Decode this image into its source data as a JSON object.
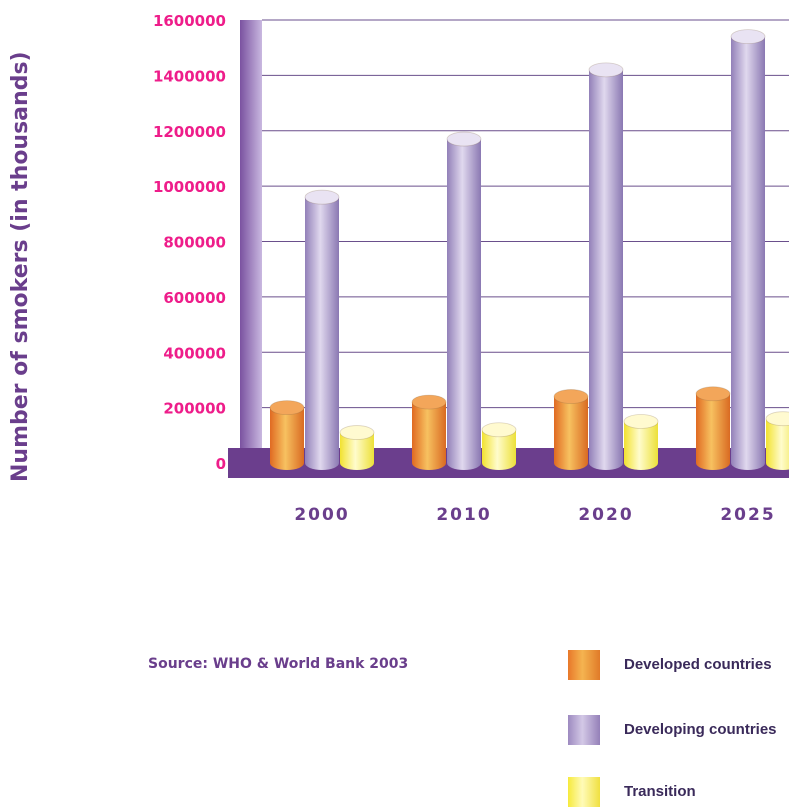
{
  "chart_data": {
    "type": "bar",
    "categories": [
      "2000",
      "2010",
      "2020",
      "2025"
    ],
    "series": [
      {
        "name": "Developed countries",
        "values": [
          200000,
          220000,
          240000,
          250000
        ],
        "color": "#f0a040"
      },
      {
        "name": "Developing countries",
        "values": [
          960000,
          1170000,
          1420000,
          1540000
        ],
        "color": "#b6a6d3"
      },
      {
        "name": "Transition",
        "values": [
          110000,
          120000,
          150000,
          160000
        ],
        "color": "#fff27a"
      }
    ],
    "ylabel": "Number of smokers (in thousands)",
    "yticks": [
      "0",
      "200000",
      "400000",
      "600000",
      "800000",
      "1000000",
      "1200000",
      "1400000",
      "1600000"
    ],
    "ylim": [
      0,
      1600000
    ],
    "grid": true,
    "legend": "bottom-right",
    "source": "Source: WHO & World Bank 2003",
    "colors": {
      "tick_labels": "#ee1d8a",
      "floor": "#6b3e8d",
      "axis_title": "#6a3e8c",
      "gridlines": "#6a4f8c"
    }
  },
  "legend_labels": {
    "developed": "Developed countries",
    "developing": "Developing countries",
    "transition": "Transition"
  }
}
